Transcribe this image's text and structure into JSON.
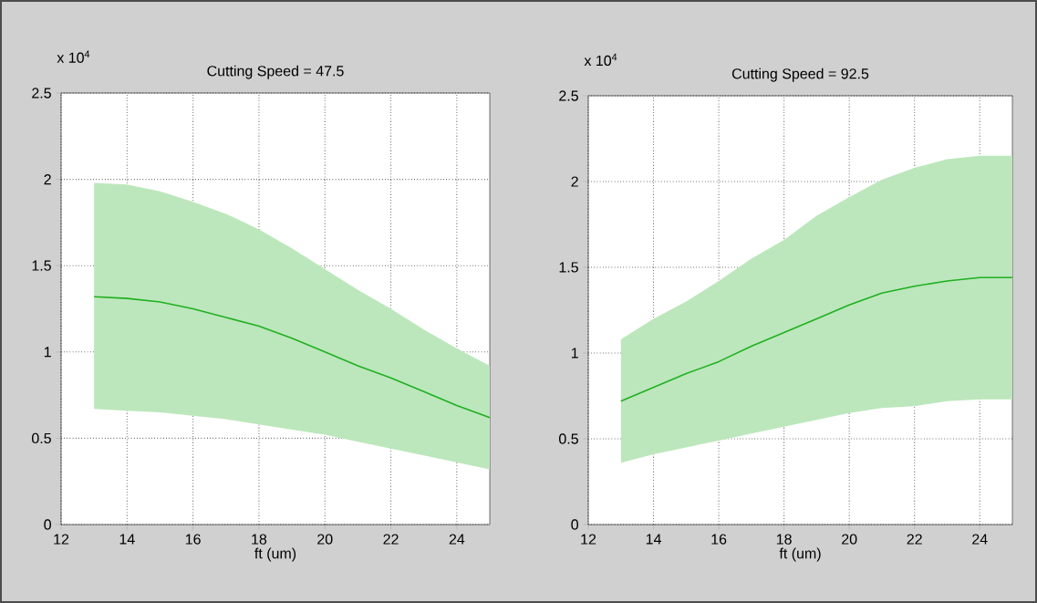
{
  "chart_data": [
    {
      "type": "line",
      "title": "Cutting Speed = 47.5",
      "xlabel": "ft (um)",
      "annotations": [
        "x 10$^{4}$"
      ],
      "x": [
        13,
        14,
        15,
        16,
        17,
        18,
        19,
        20,
        21,
        22,
        23,
        24,
        25
      ],
      "xlim": [
        12,
        25
      ],
      "xticks": [
        12,
        14,
        16,
        18,
        20,
        22,
        24
      ],
      "ylim": [
        0,
        2.5
      ],
      "yticks": [
        0,
        0.5,
        1,
        1.5,
        2,
        2.5
      ],
      "grid": true,
      "series": [
        {
          "color": "#20b020",
          "values": [
            1.32,
            1.31,
            1.29,
            1.25,
            1.2,
            1.15,
            1.08,
            1.0,
            0.92,
            0.85,
            0.77,
            0.69,
            0.62
          ],
          "lower": [
            0.67,
            0.66,
            0.65,
            0.63,
            0.61,
            0.58,
            0.55,
            0.52,
            0.48,
            0.44,
            0.4,
            0.36,
            0.32
          ],
          "upper": [
            1.98,
            1.97,
            1.93,
            1.87,
            1.8,
            1.71,
            1.6,
            1.48,
            1.36,
            1.25,
            1.13,
            1.02,
            0.92
          ]
        }
      ]
    },
    {
      "type": "line",
      "title": "Cutting Speed = 92.5",
      "xlabel": "ft (um)",
      "annotations": [
        "x 10$^{4}$"
      ],
      "x": [
        13,
        14,
        15,
        16,
        17,
        18,
        19,
        20,
        21,
        22,
        23,
        24,
        25
      ],
      "xlim": [
        12,
        25
      ],
      "xticks": [
        12,
        14,
        16,
        18,
        20,
        22,
        24
      ],
      "ylim": [
        0,
        2.5
      ],
      "yticks": [
        0,
        0.5,
        1,
        1.5,
        2,
        2.5
      ],
      "grid": true,
      "series": [
        {
          "color": "#20b020",
          "values": [
            0.72,
            0.8,
            0.88,
            0.95,
            1.04,
            1.12,
            1.2,
            1.28,
            1.35,
            1.39,
            1.42,
            1.44,
            1.44
          ],
          "lower": [
            0.36,
            0.41,
            0.45,
            0.49,
            0.53,
            0.57,
            0.61,
            0.65,
            0.68,
            0.69,
            0.72,
            0.73,
            0.73
          ],
          "upper": [
            1.08,
            1.2,
            1.3,
            1.42,
            1.55,
            1.66,
            1.8,
            1.91,
            2.01,
            2.08,
            2.13,
            2.15,
            2.15
          ]
        }
      ]
    }
  ]
}
